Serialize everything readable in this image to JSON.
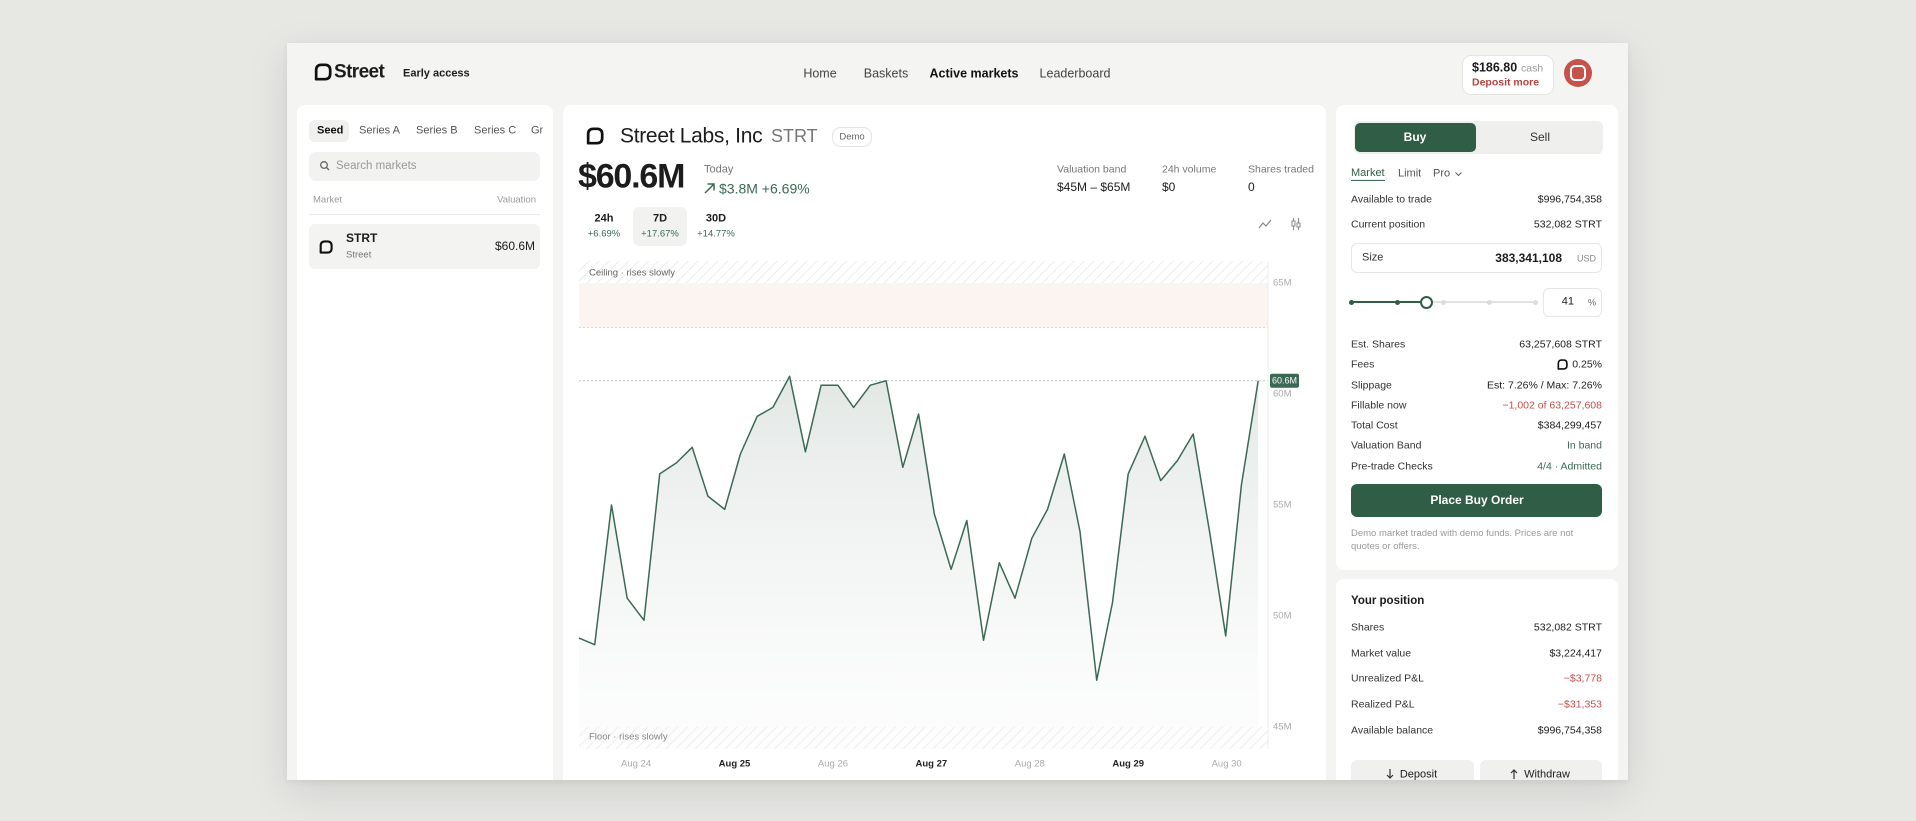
{
  "header": {
    "logo": "Street",
    "badge": "Early access",
    "nav": [
      "Home",
      "Baskets",
      "Active markets",
      "Leaderboard"
    ],
    "nav_active": 2,
    "cash": {
      "amount": "$186.80",
      "label": "cash",
      "action": "Deposit more"
    }
  },
  "sidebar": {
    "tabs": [
      "Seed",
      "Series A",
      "Series B",
      "Series C",
      "Gr"
    ],
    "tab_active": 0,
    "search": "Search markets",
    "columns": [
      "Market",
      "Valuation"
    ],
    "markets": [
      {
        "ticker": "STRT",
        "name": "Street",
        "valuation": "$60.6M"
      }
    ]
  },
  "market": {
    "name": "Street Labs, Inc",
    "ticker": "STRT",
    "badge": "Demo",
    "price": "$60.6M",
    "today": "Today",
    "change": "$3.8M +6.69%",
    "stats": [
      {
        "label": "Valuation band",
        "value": "$45M – $65M"
      },
      {
        "label": "24h volume",
        "value": "$0"
      },
      {
        "label": "Shares traded",
        "value": "0"
      }
    ],
    "ranges": [
      {
        "label": "24h",
        "change": "+6.69%"
      },
      {
        "label": "7D",
        "change": "+17.67%"
      },
      {
        "label": "30D",
        "change": "+14.77%"
      }
    ],
    "range_active": 1
  },
  "chart_data": {
    "type": "line",
    "color": "#3b6a54",
    "x": [
      23.42,
      23.58,
      23.75,
      23.91,
      24.08,
      24.24,
      24.41,
      24.57,
      24.73,
      24.9,
      25.06,
      25.23,
      25.39,
      25.56,
      25.72,
      25.88,
      26.05,
      26.21,
      26.38,
      26.54,
      26.71,
      26.87,
      27.03,
      27.2,
      27.36,
      27.53,
      27.69,
      27.85,
      28.02,
      28.18,
      28.35,
      28.51,
      28.68,
      28.84,
      29.0,
      29.17,
      29.33,
      29.5,
      29.66,
      29.83,
      29.99,
      30.15,
      30.32
    ],
    "values": [
      49.0,
      48.7,
      55.0,
      50.8,
      49.8,
      56.4,
      56.9,
      57.6,
      55.4,
      54.8,
      57.3,
      59.0,
      59.4,
      60.8,
      57.4,
      60.4,
      60.4,
      59.4,
      60.4,
      60.6,
      56.7,
      59.1,
      54.6,
      52.1,
      54.3,
      48.9,
      52.4,
      50.8,
      53.5,
      54.8,
      57.3,
      53.8,
      47.1,
      50.6,
      56.4,
      58.1,
      56.1,
      57.0,
      58.2,
      53.7,
      49.1,
      55.9,
      60.6
    ],
    "xlim": [
      23.42,
      30.42
    ],
    "xticks": [
      {
        "value": 24,
        "label": "Aug 24"
      },
      {
        "value": 25,
        "label": "Aug 25"
      },
      {
        "value": 26,
        "label": "Aug 26"
      },
      {
        "value": 27,
        "label": "Aug 27"
      },
      {
        "value": 28,
        "label": "Aug 28"
      },
      {
        "value": 29,
        "label": "Aug 29"
      },
      {
        "value": 30,
        "label": "Aug 30"
      }
    ],
    "ylim": [
      44,
      66
    ],
    "yticks": [
      {
        "value": 45,
        "label": "45M"
      },
      {
        "value": 50,
        "label": "50M"
      },
      {
        "value": 55,
        "label": "55M"
      },
      {
        "value": 60,
        "label": "60M"
      },
      {
        "value": 65,
        "label": "65M"
      }
    ],
    "ceiling": {
      "label": "Ceiling · rises slowly",
      "value": 65
    },
    "floor": {
      "label": "Floor · rises slowly",
      "value": 45
    },
    "warning_zone": [
      63,
      65
    ],
    "current": {
      "value": 60.6,
      "label": "60.6M"
    }
  },
  "order": {
    "sides": [
      "Buy",
      "Sell"
    ],
    "side_active": 0,
    "types": [
      "Market",
      "Limit",
      "Pro"
    ],
    "type_active": 0,
    "rows_top": [
      {
        "label": "Available to trade",
        "value": "$996,754,358"
      },
      {
        "label": "Current position",
        "value": "532,082 STRT"
      }
    ],
    "size": {
      "label": "Size",
      "value": "383,341,108",
      "unit": "USD"
    },
    "percent": {
      "value": 41,
      "unit": "%"
    },
    "rows": [
      {
        "label": "Est. Shares",
        "value": "63,257,608 STRT"
      },
      {
        "label": "Fees",
        "value": "0.25%"
      },
      {
        "label": "Slippage",
        "value": "Est: 7.26% / Max: 7.26%"
      },
      {
        "label": "Fillable now",
        "value": "−1,002 of 63,257,608",
        "color": "#c0504a"
      },
      {
        "label": "Total Cost",
        "value": "$384,299,457"
      },
      {
        "label": "Valuation Band",
        "value": "In band",
        "color": "#3b6a54"
      },
      {
        "label": "Pre-trade Checks",
        "value": "4/4 · Admitted",
        "color": "#3b6a54"
      }
    ],
    "button": "Place Buy Order",
    "disclaimer": "Demo market traded with demo funds. Prices are not quotes or offers."
  },
  "position": {
    "title": "Your position",
    "rows": [
      {
        "label": "Shares",
        "value": "532,082 STRT"
      },
      {
        "label": "Market value",
        "value": "$3,224,417"
      },
      {
        "label": "Unrealized P&L",
        "value": "−$3,778",
        "color": "#c0504a"
      },
      {
        "label": "Realized P&L",
        "value": "−$31,353",
        "color": "#c0504a"
      },
      {
        "label": "Available balance",
        "value": "$996,754,358"
      }
    ],
    "actions": [
      "Deposit",
      "Withdraw"
    ]
  }
}
